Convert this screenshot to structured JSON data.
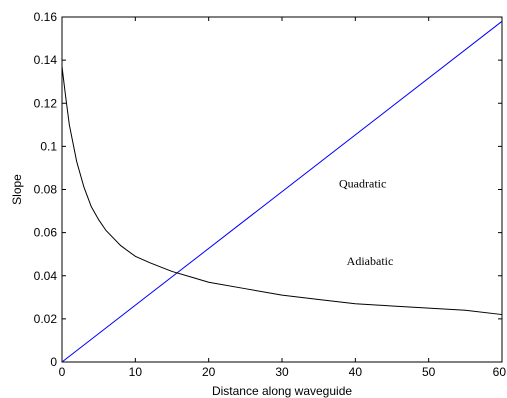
{
  "chart_data": {
    "type": "line",
    "xlabel": "Distance along waveguide",
    "ylabel": "Slope",
    "xlim": [
      0,
      60
    ],
    "ylim": [
      0,
      0.16
    ],
    "xticks": [
      "0",
      "10",
      "20",
      "30",
      "40",
      "50",
      "60"
    ],
    "yticks": [
      "0",
      "0.02",
      "0.04",
      "0.06",
      "0.08",
      "0.1",
      "0.12",
      "0.14",
      "0.16"
    ],
    "grid": false,
    "annotations": [
      {
        "text": "Quadratic",
        "x": 41,
        "y": 0.081
      },
      {
        "text": "Adiabatic",
        "x": 42,
        "y": 0.045
      }
    ],
    "series": [
      {
        "color": "#0000ff",
        "x": [
          0,
          60
        ],
        "y": [
          0,
          0.158
        ]
      },
      {
        "color": "#000000",
        "x": [
          0,
          0.5,
          1,
          2,
          3,
          4,
          5,
          6,
          8,
          10,
          12,
          15,
          18,
          20,
          25,
          30,
          35,
          40,
          45,
          50,
          55,
          60
        ],
        "y": [
          0.137,
          0.123,
          0.11,
          0.093,
          0.081,
          0.072,
          0.066,
          0.061,
          0.054,
          0.049,
          0.046,
          0.042,
          0.039,
          0.037,
          0.034,
          0.031,
          0.029,
          0.027,
          0.026,
          0.025,
          0.024,
          0.022
        ]
      }
    ]
  }
}
